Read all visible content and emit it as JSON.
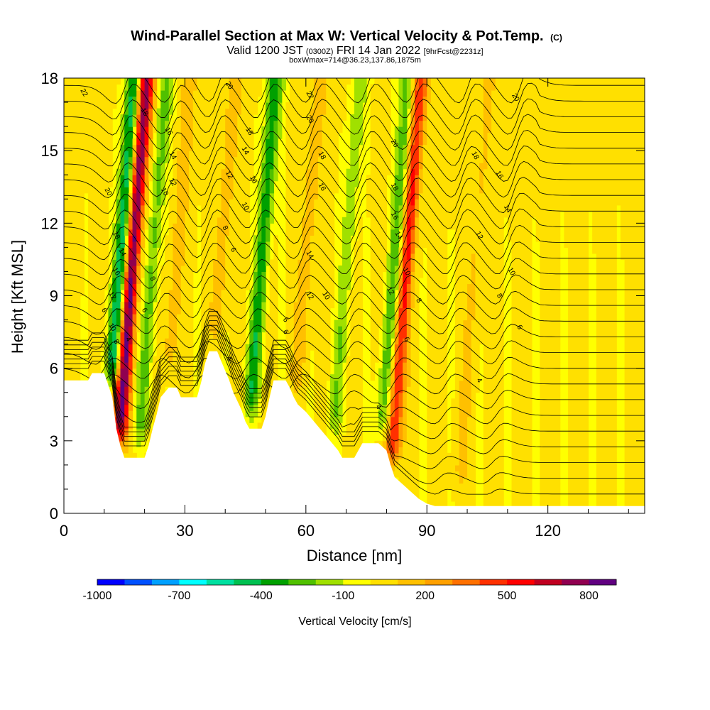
{
  "chart_data": {
    "type": "heatmap",
    "title": "Wind-Parallel Section at Max W: Vertical Velocity & Pot.Temp.",
    "title_mark": "(C)",
    "subtitle_a": "Valid 1200 JST",
    "subtitle_b": "(0300Z)",
    "subtitle_c": "FRI 14 Jan 2022",
    "subtitle_d": "[9hrFcst@2231z]",
    "subtitle2": "boxWmax=714@36.23,137.86,1875m",
    "xlabel": "Distance [nm]",
    "ylabel": "Height [Kft MSL]",
    "xlim": [
      0,
      144
    ],
    "ylim": [
      0,
      18
    ],
    "xticks": [
      0,
      30,
      60,
      90,
      120
    ],
    "yticks": [
      0,
      3,
      6,
      9,
      12,
      15,
      18
    ],
    "colorbar": {
      "label": "Vertical Velocity [cm/s]",
      "ticks": [
        "-1000",
        "-700",
        "-400",
        "-100",
        "200",
        "500",
        "800"
      ],
      "colors": [
        "#0000ff",
        "#0050ff",
        "#00a0ff",
        "#00ffff",
        "#00e0a0",
        "#00c050",
        "#00a000",
        "#50c000",
        "#a0e000",
        "#ffff00",
        "#ffe000",
        "#ffc000",
        "#ffa000",
        "#ff7000",
        "#ff3000",
        "#ff0000",
        "#c00020",
        "#900050",
        "#600080"
      ]
    },
    "terrain_kft": [
      [
        0,
        5.5
      ],
      [
        6,
        5.5
      ],
      [
        7,
        5.8
      ],
      [
        10,
        5.8
      ],
      [
        12,
        4.8
      ],
      [
        13,
        3.5
      ],
      [
        14,
        2.8
      ],
      [
        15,
        2.3
      ],
      [
        20,
        2.3
      ],
      [
        21,
        2.8
      ],
      [
        22,
        3.5
      ],
      [
        23,
        4.1
      ],
      [
        24,
        4.8
      ],
      [
        26,
        5.2
      ],
      [
        28,
        5.2
      ],
      [
        29,
        4.8
      ],
      [
        33,
        4.8
      ],
      [
        34,
        5.4
      ],
      [
        35,
        6.2
      ],
      [
        36,
        6.7
      ],
      [
        38,
        6.7
      ],
      [
        39,
        6.3
      ],
      [
        40,
        5.9
      ],
      [
        41,
        5.5
      ],
      [
        42,
        5.0
      ],
      [
        44,
        4.3
      ],
      [
        45,
        3.8
      ],
      [
        46,
        3.5
      ],
      [
        49,
        3.5
      ],
      [
        50,
        4.0
      ],
      [
        51,
        4.8
      ],
      [
        52,
        5.5
      ],
      [
        55,
        5.5
      ],
      [
        56,
        5.2
      ],
      [
        57,
        4.8
      ],
      [
        58,
        4.5
      ],
      [
        60,
        4.2
      ],
      [
        62,
        3.8
      ],
      [
        64,
        3.4
      ],
      [
        66,
        3.0
      ],
      [
        68,
        2.6
      ],
      [
        69,
        2.3
      ],
      [
        72,
        2.3
      ],
      [
        73,
        2.6
      ],
      [
        74,
        2.9
      ],
      [
        78,
        2.9
      ],
      [
        80,
        2.6
      ],
      [
        81,
        2.0
      ],
      [
        82,
        1.5
      ],
      [
        84,
        1.2
      ],
      [
        86,
        0.9
      ],
      [
        88,
        0.6
      ],
      [
        90,
        0.4
      ],
      [
        92,
        0.3
      ],
      [
        144,
        0.3
      ]
    ],
    "updrafts": [
      {
        "x": 15,
        "w": 800
      },
      {
        "x": 83,
        "w": 500
      },
      {
        "x": 58,
        "w": 150
      },
      {
        "x": 37,
        "w": 150
      },
      {
        "x": 26,
        "w": 150
      },
      {
        "x": 100,
        "w": 100
      }
    ],
    "downdrafts": [
      {
        "x": 12,
        "w": -500
      },
      {
        "x": 47,
        "w": -400
      },
      {
        "x": 80,
        "w": -300
      },
      {
        "x": 20,
        "w": -250
      },
      {
        "x": 68,
        "w": -200
      }
    ],
    "contour_labels": [
      {
        "x": 5,
        "y": 17.4,
        "text": "22"
      },
      {
        "x": 41,
        "y": 17.7,
        "text": "20"
      },
      {
        "x": 61,
        "y": 17.3,
        "text": "22"
      },
      {
        "x": 112,
        "y": 17.2,
        "text": "20"
      },
      {
        "x": 20,
        "y": 16.6,
        "text": "18"
      },
      {
        "x": 26,
        "y": 15.8,
        "text": "16"
      },
      {
        "x": 46,
        "y": 15.8,
        "text": "18"
      },
      {
        "x": 61,
        "y": 16.3,
        "text": "20"
      },
      {
        "x": 82,
        "y": 15.3,
        "text": "20"
      },
      {
        "x": 102,
        "y": 14.8,
        "text": "18"
      },
      {
        "x": 27,
        "y": 14.8,
        "text": "14"
      },
      {
        "x": 45,
        "y": 15.0,
        "text": "14"
      },
      {
        "x": 64,
        "y": 14.8,
        "text": "18"
      },
      {
        "x": 108,
        "y": 14.0,
        "text": "16"
      },
      {
        "x": 27,
        "y": 13.7,
        "text": "12"
      },
      {
        "x": 41,
        "y": 14.0,
        "text": "12"
      },
      {
        "x": 47,
        "y": 13.8,
        "text": "16"
      },
      {
        "x": 64,
        "y": 13.5,
        "text": "16"
      },
      {
        "x": 82,
        "y": 13.5,
        "text": "18"
      },
      {
        "x": 11,
        "y": 13.3,
        "text": "20"
      },
      {
        "x": 25,
        "y": 13.3,
        "text": "10"
      },
      {
        "x": 45,
        "y": 12.7,
        "text": "10"
      },
      {
        "x": 110,
        "y": 12.6,
        "text": "14"
      },
      {
        "x": 82,
        "y": 12.3,
        "text": "16"
      },
      {
        "x": 40,
        "y": 11.8,
        "text": "8"
      },
      {
        "x": 13,
        "y": 11.5,
        "text": "18"
      },
      {
        "x": 103,
        "y": 11.5,
        "text": "12"
      },
      {
        "x": 83,
        "y": 11.5,
        "text": "14"
      },
      {
        "x": 42,
        "y": 10.9,
        "text": "6"
      },
      {
        "x": 14.5,
        "y": 10.8,
        "text": "14"
      },
      {
        "x": 61,
        "y": 10.7,
        "text": "14"
      },
      {
        "x": 13,
        "y": 10.0,
        "text": "16"
      },
      {
        "x": 85,
        "y": 10.0,
        "text": "10"
      },
      {
        "x": 111,
        "y": 10.0,
        "text": "10"
      },
      {
        "x": 22,
        "y": 9.7,
        "text": "8"
      },
      {
        "x": 81,
        "y": 9.2,
        "text": "12"
      },
      {
        "x": 65,
        "y": 9.0,
        "text": "10"
      },
      {
        "x": 61,
        "y": 9.0,
        "text": "12"
      },
      {
        "x": 12,
        "y": 9.0,
        "text": "12"
      },
      {
        "x": 108,
        "y": 9.0,
        "text": "8"
      },
      {
        "x": 88,
        "y": 8.8,
        "text": "8"
      },
      {
        "x": 10,
        "y": 8.4,
        "text": "6"
      },
      {
        "x": 20,
        "y": 8.4,
        "text": "6"
      },
      {
        "x": 55,
        "y": 8.0,
        "text": "6"
      },
      {
        "x": 12,
        "y": 7.7,
        "text": "10"
      },
      {
        "x": 113,
        "y": 7.7,
        "text": "6"
      },
      {
        "x": 55,
        "y": 7.5,
        "text": "6"
      },
      {
        "x": 13,
        "y": 7.1,
        "text": "8"
      },
      {
        "x": 16,
        "y": 7.2,
        "text": "4"
      },
      {
        "x": 85,
        "y": 7.2,
        "text": "6"
      },
      {
        "x": 41,
        "y": 6.4,
        "text": "4"
      },
      {
        "x": 103,
        "y": 5.5,
        "text": "4"
      },
      {
        "x": 78,
        "y": 4.4,
        "text": "4"
      }
    ]
  }
}
